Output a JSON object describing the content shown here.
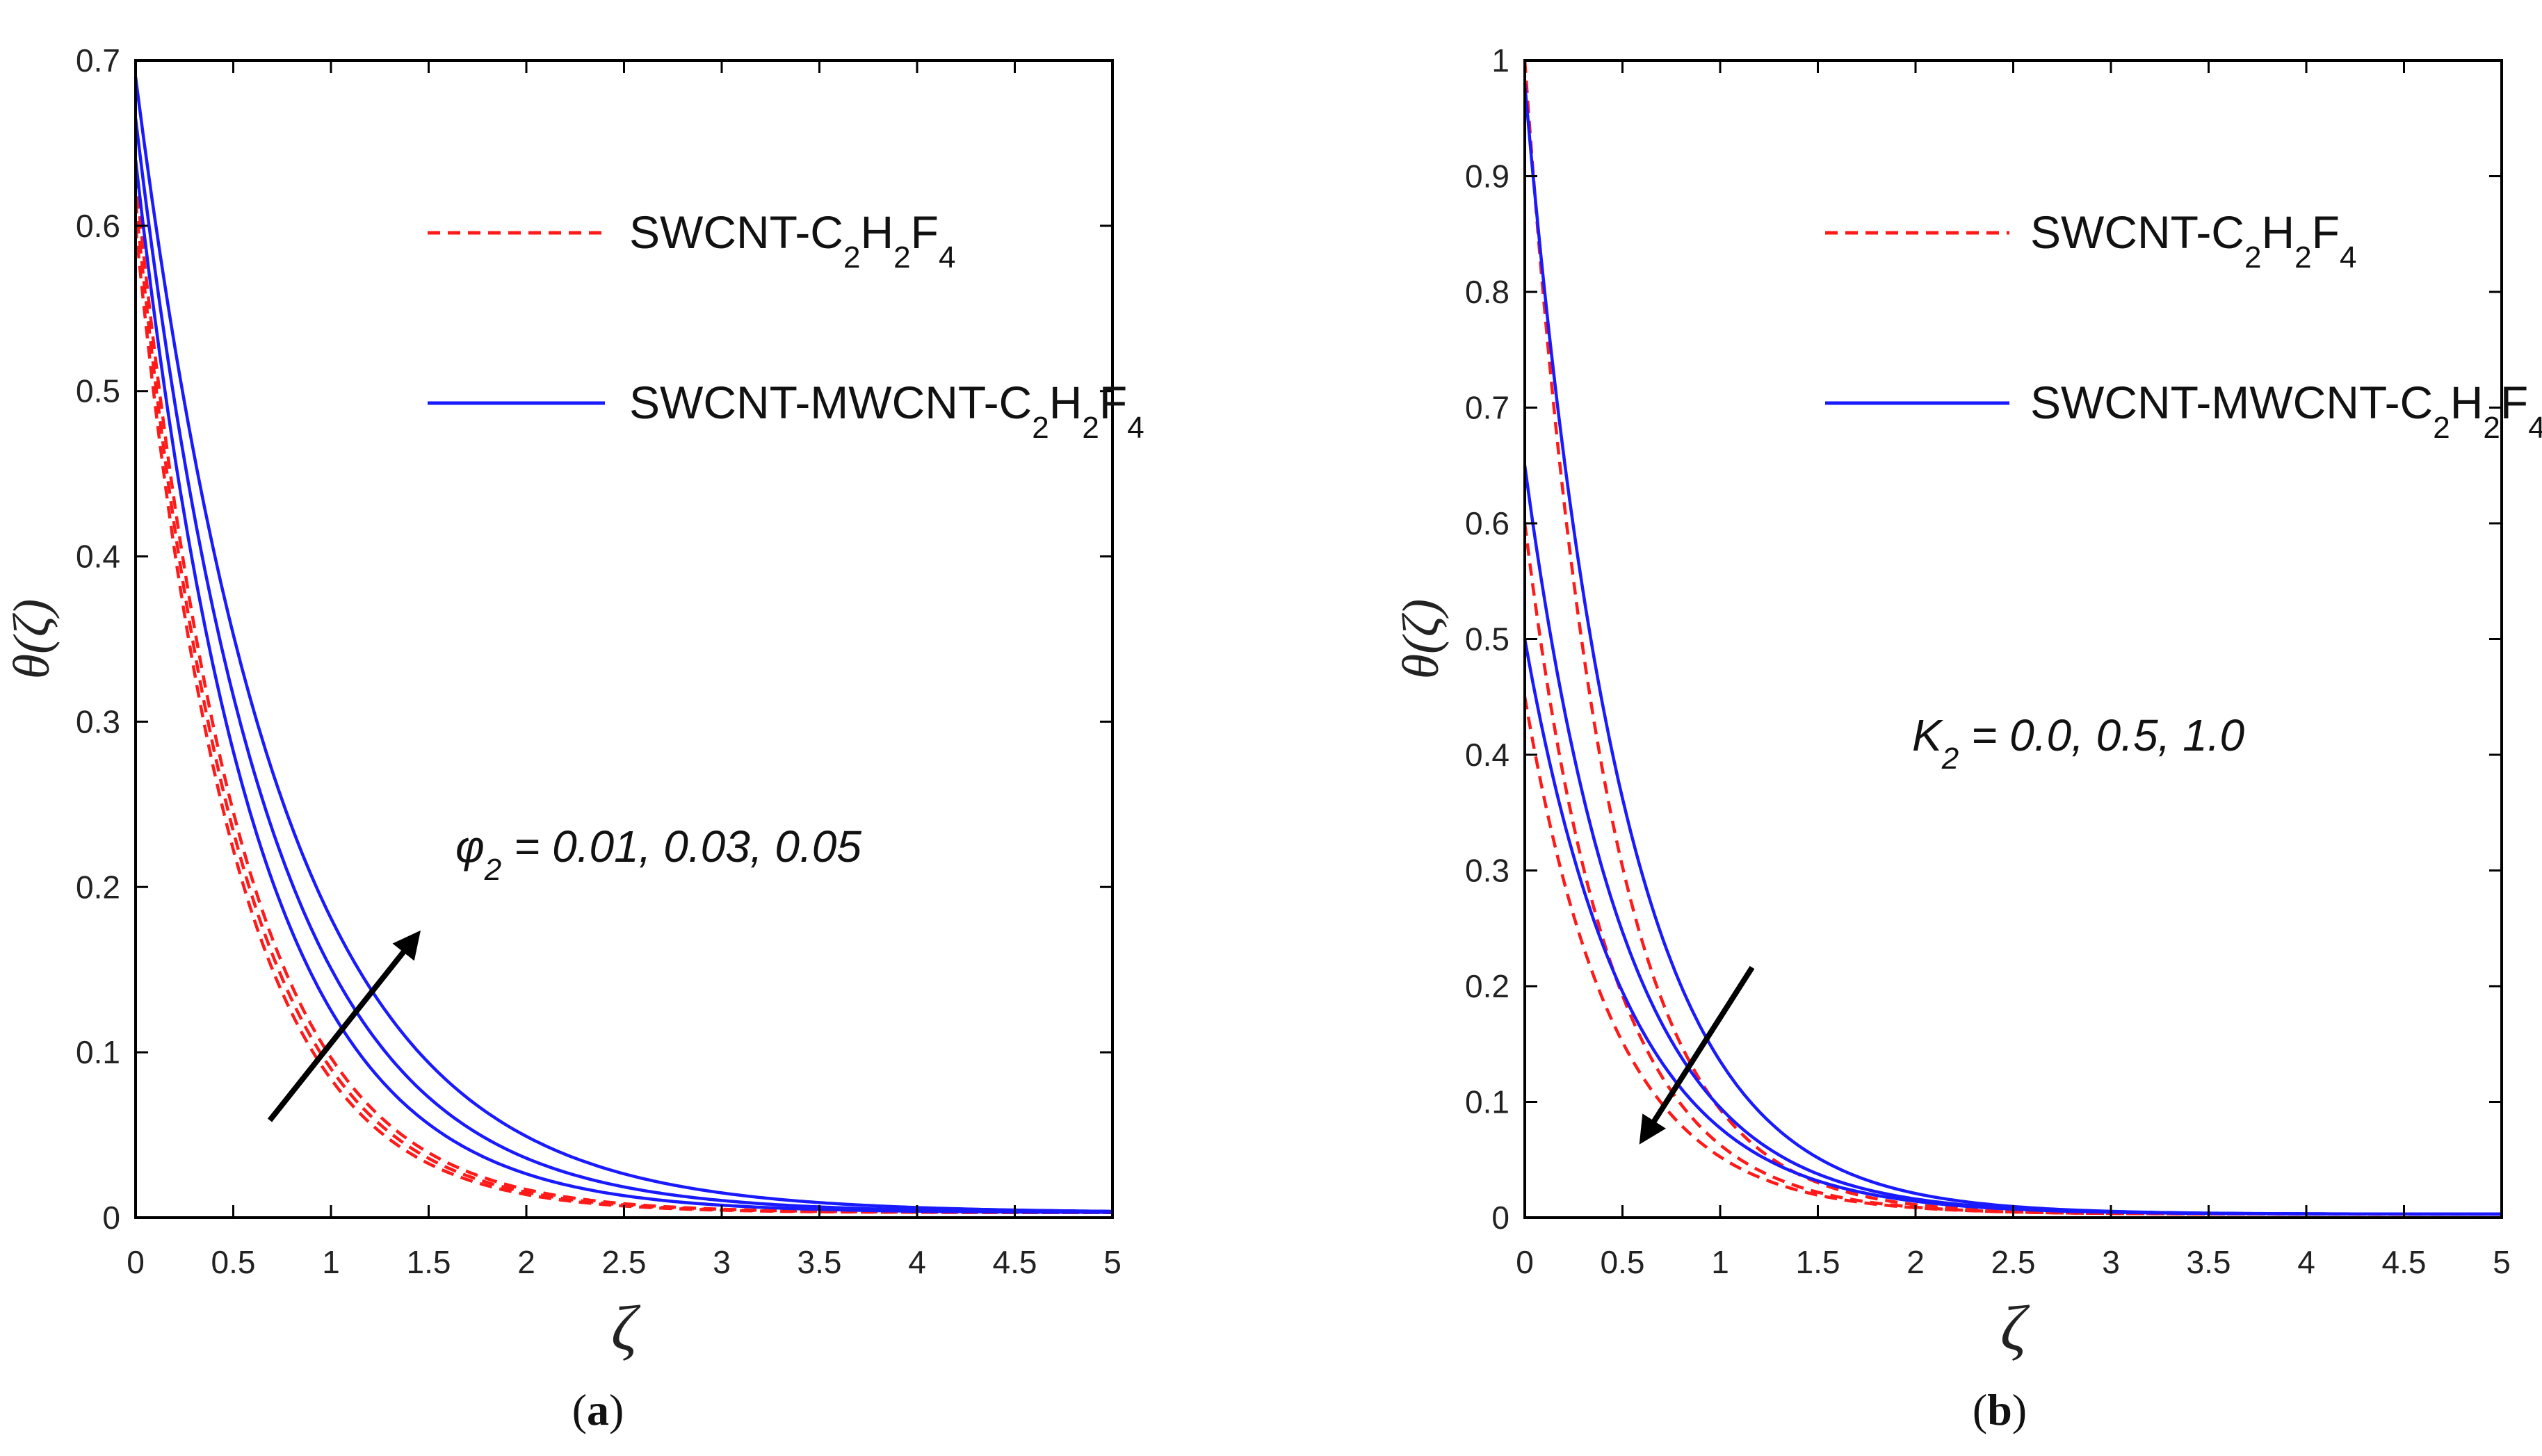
{
  "chart_data": [
    {
      "panel_label": "a",
      "type": "line",
      "xlabel": "ζ",
      "ylabel": "θ(ζ)",
      "xlim": [
        0,
        5
      ],
      "ylim": [
        0,
        0.7
      ],
      "xticks": [
        "0",
        "0.5",
        "1",
        "1.5",
        "2",
        "2.5",
        "3",
        "3.5",
        "4",
        "4.5",
        "5"
      ],
      "yticks": [
        "0",
        "0.1",
        "0.2",
        "0.3",
        "0.4",
        "0.5",
        "0.6",
        "0.7"
      ],
      "legend": [
        {
          "label": "SWCNT-C",
          "sub": [
            "2",
            "2",
            "4"
          ],
          "style": "dashed",
          "color": "#ff1a1a"
        },
        {
          "label": "SWCNT-MWCNT-C",
          "sub": [
            "2",
            "2",
            "4"
          ],
          "style": "solid",
          "color": "#1a1aff"
        }
      ],
      "annotation": {
        "symbol": "φ",
        "sub": "2",
        "text": " = 0.01, 0.03, 0.05",
        "direction": "up-right"
      },
      "series": [
        {
          "name": "SWCNT-C2H2F4 φ2=0.01",
          "style": "dashed",
          "color": "#ff1a1a",
          "theta0": 0.6,
          "k": 2.0,
          "tail": 0.003
        },
        {
          "name": "SWCNT-C2H2F4 φ2=0.03",
          "style": "dashed",
          "color": "#ff1a1a",
          "theta0": 0.615,
          "k": 1.95,
          "tail": 0.003
        },
        {
          "name": "SWCNT-C2H2F4 φ2=0.05",
          "style": "dashed",
          "color": "#ff1a1a",
          "theta0": 0.63,
          "k": 1.9,
          "tail": 0.003
        },
        {
          "name": "SWCNT-MWCNT-C2H2F4 φ2=0.01",
          "style": "solid",
          "color": "#1a1aff",
          "theta0": 0.64,
          "k": 1.65,
          "tail": 0.003
        },
        {
          "name": "SWCNT-MWCNT-C2H2F4 φ2=0.03",
          "style": "solid",
          "color": "#1a1aff",
          "theta0": 0.665,
          "k": 1.5,
          "tail": 0.003
        },
        {
          "name": "SWCNT-MWCNT-C2H2F4 φ2=0.05",
          "style": "solid",
          "color": "#1a1aff",
          "theta0": 0.69,
          "k": 1.35,
          "tail": 0.003
        }
      ]
    },
    {
      "panel_label": "b",
      "type": "line",
      "xlabel": "ζ",
      "ylabel": "θ(ζ)",
      "xlim": [
        0,
        5
      ],
      "ylim": [
        0,
        1
      ],
      "xticks": [
        "0",
        "0.5",
        "1",
        "1.5",
        "2",
        "2.5",
        "3",
        "3.5",
        "4",
        "4.5",
        "5"
      ],
      "yticks": [
        "0",
        "0.1",
        "0.2",
        "0.3",
        "0.4",
        "0.5",
        "0.6",
        "0.7",
        "0.8",
        "0.9",
        "1"
      ],
      "legend": [
        {
          "label": "SWCNT-C",
          "sub": [
            "2",
            "2",
            "4"
          ],
          "style": "dashed",
          "color": "#ff1a1a"
        },
        {
          "label": "SWCNT-MWCNT-C",
          "sub": [
            "2",
            "2",
            "4"
          ],
          "style": "solid",
          "color": "#1a1aff"
        }
      ],
      "annotation": {
        "symbol": "K",
        "sub": "2",
        "text": " = 0.0, 0.5, 1.0",
        "direction": "down-left"
      },
      "series": [
        {
          "name": "SWCNT-C2H2F4 K2=0.0",
          "style": "dashed",
          "color": "#ff1a1a",
          "theta0": 1.0,
          "k": 2.4,
          "tail": 0.003
        },
        {
          "name": "SWCNT-C2H2F4 K2=0.5",
          "style": "dashed",
          "color": "#ff1a1a",
          "theta0": 0.6,
          "k": 2.3,
          "tail": 0.003
        },
        {
          "name": "SWCNT-C2H2F4 K2=1.0",
          "style": "dashed",
          "color": "#ff1a1a",
          "theta0": 0.45,
          "k": 2.2,
          "tail": 0.003
        },
        {
          "name": "SWCNT-MWCNT-C2H2F4 K2=0.0",
          "style": "solid",
          "color": "#1a1aff",
          "theta0": 0.98,
          "k": 2.0,
          "tail": 0.003
        },
        {
          "name": "SWCNT-MWCNT-C2H2F4 K2=0.5",
          "style": "solid",
          "color": "#1a1aff",
          "theta0": 0.65,
          "k": 1.95,
          "tail": 0.003
        },
        {
          "name": "SWCNT-MWCNT-C2H2F4 K2=1.0",
          "style": "solid",
          "color": "#1a1aff",
          "theta0": 0.5,
          "k": 1.9,
          "tail": 0.003
        }
      ]
    }
  ],
  "legend_suffix": {
    "h": "H",
    "f": "F"
  },
  "captions": {
    "a": "a",
    "b": "b"
  }
}
